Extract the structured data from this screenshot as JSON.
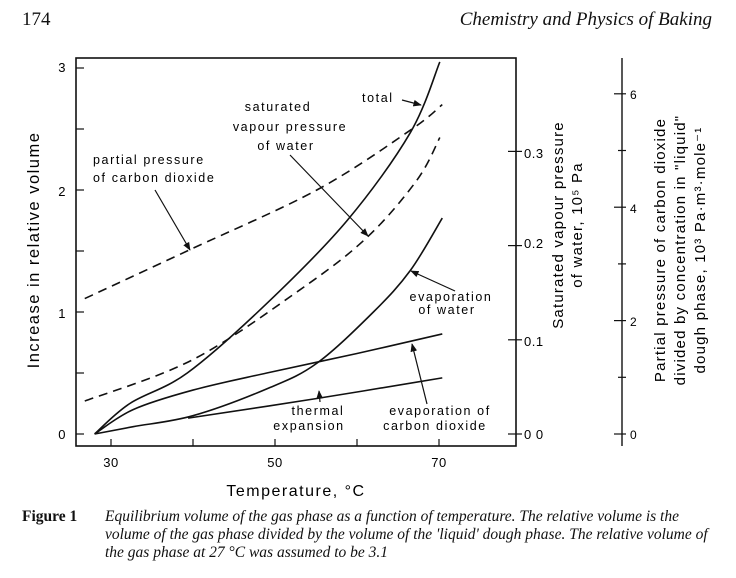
{
  "header": {
    "page_number": "174",
    "running_title": "Chemistry and Physics of Baking"
  },
  "caption": {
    "label": "Figure 1",
    "text": "Equilibrium volume of the gas phase as a function of temperature. The relative volume is the volume of the gas phase divided by the volume of the 'liquid' dough phase. The relative volume of the gas phase at 27 °C was assumed to be 3.1"
  },
  "chart_data": {
    "type": "line",
    "xlabel": "Temperature, °C",
    "ylabel": "Increase in relative volume",
    "xlim": [
      25.7,
      79.4
    ],
    "ylim": [
      -0.1,
      3.1
    ],
    "x_ticks": [
      "30",
      "50",
      "70"
    ],
    "y_ticks": [
      "0",
      "1",
      "2",
      "3"
    ],
    "secondary_axes": [
      {
        "label_lines": [
          "Saturated vapour pressure",
          "of water, 10⁵ Pa"
        ],
        "ticks": [
          "0 0",
          "0.1",
          "0.2",
          "0.3"
        ],
        "tick_values": [
          0,
          0.1,
          0.2,
          0.3
        ]
      },
      {
        "label_lines": [
          "Partial pressure of carbon dioxide",
          "divided by concentration in \"liquid\"",
          "dough phase, 10³ Pa·m³·mole⁻¹"
        ],
        "ticks": [
          "0",
          "2",
          "4",
          "6"
        ],
        "tick_values": [
          0,
          2,
          4,
          6
        ]
      }
    ],
    "series": [
      {
        "name": "total",
        "style": "solid",
        "x": [
          28,
          32.3,
          39.3,
          49,
          58.8,
          66.5,
          70.1
        ],
        "y": [
          0,
          0.25,
          0.5,
          1.07,
          1.75,
          2.47,
          3.05
        ]
      },
      {
        "name": "partial pressure of carbon dioxide",
        "style": "dashed",
        "x": [
          26.8,
          39.6,
          55.1,
          66.5,
          70.4
        ],
        "y": [
          1.11,
          1.51,
          2.0,
          2.49,
          2.7
        ]
      },
      {
        "name": "saturated vapour pressure of water",
        "style": "dashed",
        "x": [
          26.8,
          40,
          53,
          61.2,
          67.3,
          70.1
        ],
        "y": [
          0.27,
          0.61,
          1.18,
          1.61,
          2.08,
          2.43
        ]
      },
      {
        "name": "evaporation of water",
        "style": "solid",
        "x": [
          28,
          32.7,
          40,
          49,
          55.1,
          62,
          66.5,
          70.4
        ],
        "y": [
          0,
          0.06,
          0.15,
          0.37,
          0.58,
          1.0,
          1.34,
          1.77
        ]
      },
      {
        "name": "evaporation of carbon dioxide",
        "style": "solid",
        "x": [
          28,
          32.7,
          40,
          49,
          60,
          70.4
        ],
        "y": [
          0,
          0.2,
          0.36,
          0.5,
          0.66,
          0.82
        ]
      },
      {
        "name": "thermal expansion",
        "style": "solid",
        "x": [
          39.4,
          55,
          70.4
        ],
        "y": [
          0.13,
          0.29,
          0.46
        ]
      }
    ],
    "annotations": {
      "total": [
        "total"
      ],
      "vapour": [
        "saturated",
        "vapour pressure",
        "of water"
      ],
      "co2pp": [
        "partial pressure",
        "of carbon dioxide"
      ],
      "evap_water": [
        "evaporation",
        "of water"
      ],
      "thermal": [
        "thermal",
        "expansion"
      ],
      "evap_co2": [
        "evaporation of",
        "carbon dioxide"
      ]
    }
  }
}
